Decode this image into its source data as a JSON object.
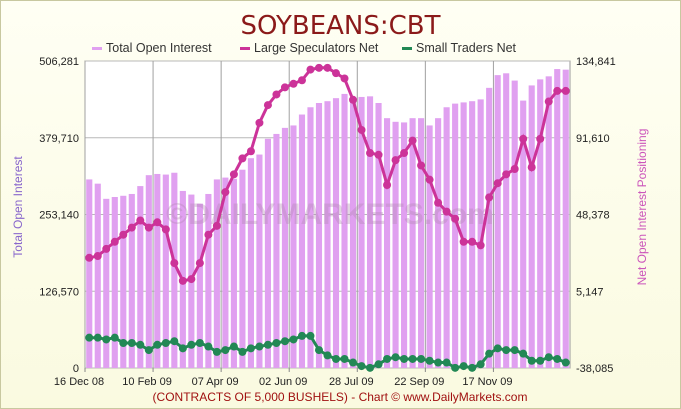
{
  "chart_data": {
    "type": "bar+line",
    "title": "SOYBEANS:CBT",
    "legend": [
      {
        "label": "Total Open Interest",
        "color": "#e0a0f0"
      },
      {
        "label": "Large Speculators Net",
        "color": "#cc3399"
      },
      {
        "label": "Small Traders Net",
        "color": "#228855"
      }
    ],
    "legend_placement": "top",
    "left_axis": {
      "label": "Total Open Interest",
      "ticks": [
        "506,281",
        "379,710",
        "253,140",
        "126,570",
        "0"
      ],
      "ylim": [
        0,
        506281
      ]
    },
    "right_axis": {
      "label": "Net Open Interest Positioning",
      "ticks": [
        "134,841",
        "91,610",
        "48,378",
        "5,147",
        "-38,085"
      ],
      "ylim": [
        -38085,
        134841
      ]
    },
    "x_ticks": [
      "16 Dec 08",
      "10 Feb 09",
      "07 Apr 09",
      "02 Jun 09",
      "28 Jul 09",
      "22 Sep 09",
      "17 Nov 09"
    ],
    "grid": true,
    "watermark": "©DAILYMARKETS.com",
    "footer": "(CONTRACTS OF 5,000 BUSHELS)  - Chart © www.DailyMarkets.com",
    "series": [
      {
        "name": "Total Open Interest",
        "axis": "left",
        "style": "bar",
        "values": [
          311000,
          304000,
          279000,
          282000,
          284000,
          287000,
          300000,
          318000,
          320000,
          319000,
          322000,
          292000,
          286000,
          271000,
          287000,
          311000,
          314000,
          312000,
          327000,
          346000,
          352000,
          378000,
          386000,
          396000,
          400000,
          418000,
          430000,
          437000,
          440000,
          445000,
          452000,
          444000,
          447000,
          448000,
          437000,
          412000,
          406000,
          405000,
          412000,
          412000,
          400000,
          412000,
          430000,
          436000,
          438000,
          440000,
          443000,
          462000,
          483000,
          486000,
          474000,
          441000,
          466000,
          476000,
          481000,
          493000,
          492000
        ]
      },
      {
        "name": "Large Speculators Net",
        "axis": "right",
        "style": "line",
        "values": [
          24000,
          25000,
          29000,
          33000,
          37000,
          41000,
          45000,
          41000,
          44000,
          40000,
          21000,
          11000,
          12000,
          21000,
          37000,
          42000,
          61000,
          71000,
          80000,
          84000,
          100000,
          110000,
          116000,
          120000,
          122000,
          124000,
          130000,
          131000,
          131000,
          128000,
          125000,
          113000,
          96000,
          83000,
          82000,
          65000,
          79000,
          83000,
          90000,
          76000,
          68000,
          55000,
          50000,
          46000,
          33000,
          33000,
          31000,
          58000,
          66000,
          71000,
          74000,
          91000,
          75000,
          91000,
          112000,
          118000,
          118000
        ]
      },
      {
        "name": "Small Traders Net",
        "axis": "right",
        "style": "line",
        "values": [
          -21000,
          -21000,
          -22000,
          -21000,
          -24000,
          -24000,
          -25000,
          -28000,
          -25000,
          -24000,
          -23000,
          -27000,
          -25000,
          -24000,
          -26000,
          -29000,
          -28000,
          -26000,
          -29000,
          -27000,
          -26000,
          -25000,
          -24000,
          -23000,
          -22000,
          -20000,
          -20000,
          -28000,
          -31000,
          -33000,
          -33000,
          -35000,
          -37000,
          -38000,
          -36000,
          -33000,
          -32000,
          -33000,
          -33000,
          -33000,
          -34000,
          -35000,
          -35000,
          -38000,
          -37000,
          -38000,
          -36000,
          -30000,
          -27000,
          -28000,
          -28000,
          -30000,
          -34000,
          -34000,
          -32000,
          -33000,
          -35000
        ]
      }
    ]
  }
}
